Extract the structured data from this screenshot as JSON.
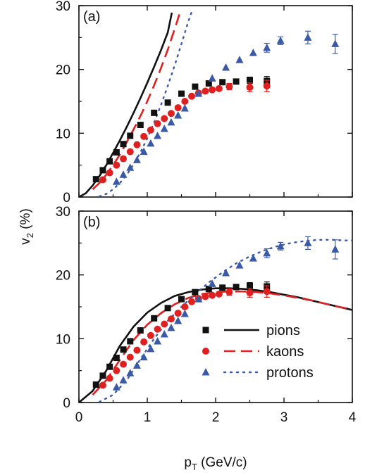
{
  "figure": {
    "ylabel_main": "v",
    "ylabel_sub": "2",
    "ylabel_unit": " (%)",
    "xlabel_main": "p",
    "xlabel_sub": "T",
    "xlabel_unit": " (GeV/c)"
  },
  "legend": {
    "entries": [
      {
        "label": "pions",
        "color": "#111111",
        "marker": "square",
        "line": "solid"
      },
      {
        "label": "kaons",
        "color": "#e02020",
        "marker": "circle",
        "line": "dashed"
      },
      {
        "label": "protons",
        "color": "#3a5aa8",
        "marker": "triangle",
        "line": "dotted"
      }
    ]
  },
  "chart_data": [
    {
      "type": "scatter",
      "panel_label": "(a)",
      "xlim": [
        0,
        4
      ],
      "ylim": [
        0,
        30
      ],
      "x_ticks": [
        0,
        1,
        2,
        3,
        4
      ],
      "y_ticks": [
        0,
        10,
        20,
        30
      ],
      "series": [
        {
          "name": "pions",
          "kind": "data",
          "marker": "square",
          "color": "#111111",
          "x": [
            0.25,
            0.35,
            0.45,
            0.55,
            0.65,
            0.75,
            0.9,
            1.1,
            1.3,
            1.5,
            1.7,
            1.9,
            2.1,
            2.3,
            2.5,
            2.75
          ],
          "y": [
            2.8,
            4.2,
            5.6,
            7.0,
            8.3,
            9.6,
            11.3,
            13.2,
            14.8,
            16.2,
            17.3,
            17.8,
            18.0,
            18.1,
            18.3,
            18.2
          ],
          "err": [
            0,
            0,
            0,
            0,
            0,
            0,
            0,
            0,
            0,
            0,
            0,
            0,
            0,
            0.3,
            0.5,
            0.7
          ]
        },
        {
          "name": "kaons",
          "kind": "data",
          "marker": "circle",
          "color": "#e02020",
          "x": [
            0.35,
            0.45,
            0.55,
            0.65,
            0.75,
            0.85,
            0.95,
            1.05,
            1.15,
            1.25,
            1.35,
            1.45,
            1.55,
            1.65,
            1.75,
            1.85,
            1.95,
            2.05,
            2.2,
            2.5,
            2.75
          ],
          "y": [
            2.7,
            3.8,
            5.0,
            6.0,
            7.1,
            8.2,
            9.5,
            10.5,
            11.5,
            12.3,
            13.1,
            14.0,
            15.0,
            15.8,
            16.3,
            16.6,
            16.8,
            17.0,
            17.3,
            17.2,
            17.4
          ],
          "err": [
            0,
            0,
            0,
            0,
            0,
            0,
            0,
            0,
            0,
            0,
            0,
            0,
            0,
            0,
            0,
            0,
            0,
            0,
            0.5,
            0.7,
            0.9
          ]
        },
        {
          "name": "protons",
          "kind": "data",
          "marker": "triangle",
          "color": "#3a5aa8",
          "x": [
            0.55,
            0.65,
            0.75,
            0.85,
            0.95,
            1.05,
            1.15,
            1.25,
            1.35,
            1.45,
            1.55,
            1.75,
            1.95,
            2.15,
            2.35,
            2.55,
            2.75,
            2.95,
            3.35,
            3.75
          ],
          "y": [
            2.4,
            3.5,
            4.6,
            5.8,
            7.1,
            8.4,
            9.6,
            10.7,
            11.7,
            12.8,
            13.9,
            16.2,
            18.6,
            20.3,
            21.5,
            22.6,
            23.4,
            24.5,
            25.0,
            24.0
          ],
          "err": [
            0,
            0,
            0,
            0,
            0,
            0,
            0,
            0,
            0,
            0,
            0,
            0,
            0,
            0,
            0,
            0,
            0.7,
            0.6,
            1.0,
            1.5
          ]
        },
        {
          "name": "pions",
          "kind": "model",
          "line": "solid",
          "color": "#111111",
          "x": [
            0,
            0.1,
            0.2,
            0.3,
            0.4,
            0.5,
            0.6,
            0.7,
            0.8,
            0.9,
            1.0,
            1.1,
            1.2,
            1.3,
            1.36
          ],
          "y": [
            0,
            0.6,
            1.8,
            3.3,
            5.0,
            6.9,
            8.9,
            11.0,
            13.2,
            15.5,
            17.9,
            20.4,
            23.0,
            25.8,
            28.9
          ]
        },
        {
          "name": "kaons",
          "kind": "model",
          "line": "dashed",
          "color": "#e02020",
          "x": [
            0.2,
            0.3,
            0.4,
            0.5,
            0.6,
            0.7,
            0.8,
            0.9,
            1.0,
            1.1,
            1.2,
            1.3,
            1.4,
            1.48
          ],
          "y": [
            1.2,
            2.2,
            3.5,
            5.0,
            6.7,
            8.6,
            10.6,
            12.7,
            15.0,
            17.5,
            20.2,
            23.1,
            26.3,
            29.0
          ]
        },
        {
          "name": "protons",
          "kind": "model",
          "line": "dotted",
          "color": "#3a5aa8",
          "x": [
            0.3,
            0.4,
            0.5,
            0.6,
            0.7,
            0.8,
            0.9,
            1.0,
            1.1,
            1.2,
            1.3,
            1.4,
            1.5,
            1.6,
            1.65
          ],
          "y": [
            0.1,
            0.5,
            1.2,
            2.2,
            3.5,
            5.1,
            7.0,
            9.2,
            11.7,
            14.4,
            17.4,
            20.6,
            24.0,
            27.5,
            29.0
          ]
        }
      ]
    },
    {
      "type": "scatter",
      "panel_label": "(b)",
      "xlim": [
        0,
        4
      ],
      "ylim": [
        0,
        30
      ],
      "x_ticks": [
        0,
        1,
        2,
        3,
        4
      ],
      "y_ticks": [
        0,
        10,
        20,
        30
      ],
      "series": [
        {
          "name": "pions",
          "kind": "data",
          "marker": "square",
          "color": "#111111",
          "x": [
            0.25,
            0.35,
            0.45,
            0.55,
            0.65,
            0.75,
            0.9,
            1.1,
            1.3,
            1.5,
            1.7,
            1.9,
            2.1,
            2.3,
            2.5,
            2.75
          ],
          "y": [
            2.8,
            4.2,
            5.6,
            7.0,
            8.3,
            9.6,
            11.3,
            13.2,
            14.8,
            16.2,
            17.3,
            17.8,
            18.0,
            18.1,
            18.3,
            18.2
          ],
          "err": [
            0,
            0,
            0,
            0,
            0,
            0,
            0,
            0,
            0,
            0,
            0,
            0,
            0,
            0.3,
            0.5,
            0.7
          ]
        },
        {
          "name": "kaons",
          "kind": "data",
          "marker": "circle",
          "color": "#e02020",
          "x": [
            0.35,
            0.45,
            0.55,
            0.65,
            0.75,
            0.85,
            0.95,
            1.05,
            1.15,
            1.25,
            1.35,
            1.45,
            1.55,
            1.65,
            1.75,
            1.85,
            1.95,
            2.05,
            2.2,
            2.5,
            2.75
          ],
          "y": [
            2.7,
            3.8,
            5.0,
            6.0,
            7.1,
            8.2,
            9.5,
            10.5,
            11.5,
            12.3,
            13.1,
            14.0,
            15.0,
            15.8,
            16.3,
            16.6,
            16.8,
            17.0,
            17.3,
            17.2,
            17.4
          ],
          "err": [
            0,
            0,
            0,
            0,
            0,
            0,
            0,
            0,
            0,
            0,
            0,
            0,
            0,
            0,
            0,
            0,
            0,
            0,
            0.5,
            0.7,
            0.9
          ]
        },
        {
          "name": "protons",
          "kind": "data",
          "marker": "triangle",
          "color": "#3a5aa8",
          "x": [
            0.55,
            0.65,
            0.75,
            0.85,
            0.95,
            1.05,
            1.15,
            1.25,
            1.35,
            1.45,
            1.55,
            1.75,
            1.95,
            2.15,
            2.35,
            2.55,
            2.75,
            2.95,
            3.35,
            3.75
          ],
          "y": [
            2.4,
            3.5,
            4.6,
            5.8,
            7.1,
            8.4,
            9.6,
            10.7,
            11.7,
            12.8,
            13.9,
            16.2,
            18.6,
            20.3,
            21.5,
            22.6,
            23.4,
            24.5,
            25.0,
            24.0
          ],
          "err": [
            0,
            0,
            0,
            0,
            0,
            0,
            0,
            0,
            0,
            0,
            0,
            0,
            0,
            0,
            0,
            0,
            0.7,
            0.6,
            1.0,
            1.5
          ]
        },
        {
          "name": "pions",
          "kind": "model",
          "line": "solid",
          "color": "#111111",
          "x": [
            0,
            0.2,
            0.4,
            0.6,
            0.8,
            1.0,
            1.2,
            1.4,
            1.6,
            1.8,
            2.0,
            2.2,
            2.4,
            2.6,
            2.8,
            3.0,
            3.2,
            3.4,
            3.6,
            3.8,
            4.0
          ],
          "y": [
            0,
            1.8,
            5.0,
            8.9,
            11.9,
            14.1,
            15.6,
            16.7,
            17.3,
            17.7,
            17.9,
            17.9,
            17.8,
            17.6,
            17.3,
            16.9,
            16.5,
            16.0,
            15.5,
            15.0,
            14.5
          ]
        },
        {
          "name": "kaons",
          "kind": "model",
          "line": "dashed",
          "color": "#e02020",
          "x": [
            0.2,
            0.4,
            0.6,
            0.8,
            1.0,
            1.2,
            1.4,
            1.6,
            1.8,
            2.0,
            2.2,
            2.4,
            2.6,
            2.8,
            3.0,
            3.2,
            3.4,
            3.6,
            3.8,
            4.0
          ],
          "y": [
            1.2,
            3.5,
            6.7,
            9.8,
            12.2,
            14.0,
            15.4,
            16.4,
            17.0,
            17.3,
            17.4,
            17.4,
            17.3,
            17.1,
            16.8,
            16.4,
            16.0,
            15.5,
            15.0,
            14.6
          ]
        },
        {
          "name": "protons",
          "kind": "model",
          "line": "dotted",
          "color": "#3a5aa8",
          "x": [
            0.3,
            0.5,
            0.7,
            0.9,
            1.1,
            1.3,
            1.5,
            1.7,
            1.9,
            2.1,
            2.3,
            2.5,
            2.7,
            2.9,
            3.1,
            3.3,
            3.5,
            3.7,
            3.9,
            4.0
          ],
          "y": [
            0.1,
            1.2,
            3.5,
            6.8,
            10.0,
            12.8,
            15.0,
            17.0,
            18.8,
            20.4,
            21.8,
            22.9,
            23.8,
            24.5,
            25.0,
            25.3,
            25.5,
            25.5,
            25.4,
            25.4
          ]
        }
      ]
    }
  ]
}
